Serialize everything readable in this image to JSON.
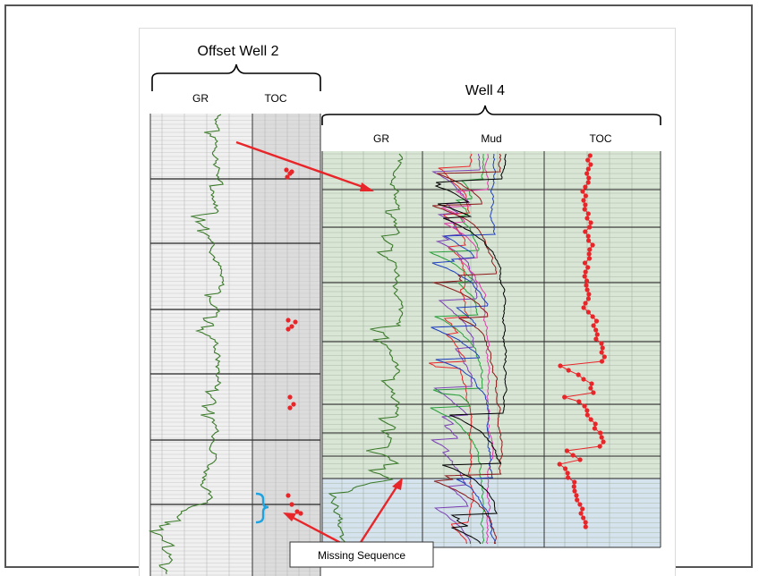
{
  "offset_well": {
    "title": "Offset Well 2",
    "track_gr": "GR",
    "track_toc": "TOC"
  },
  "well4": {
    "title": "Well 4",
    "track_gr": "GR",
    "track_mud": "Mud",
    "track_toc": "TOC"
  },
  "annotation": {
    "missing_sequence": "Missing Sequence"
  },
  "colors": {
    "gr_curve": "#3b7a2a",
    "toc_points": "#e8262a",
    "arrow": "#e8262a",
    "bracket_cyan": "#1fa3e0",
    "well4_fill_green": "#d9e6d6",
    "well4_fill_blue": "#d5e3ee",
    "offset_fill": "#ebebeb",
    "mud_curves": [
      "#e8262a",
      "#7b3fb5",
      "#2a9f3c",
      "#e03aa8",
      "#1f3fbf",
      "#8b1a1a",
      "#000000"
    ]
  },
  "icons": {
    "arrow": "arrow-icon",
    "bracket": "bracket-icon"
  }
}
